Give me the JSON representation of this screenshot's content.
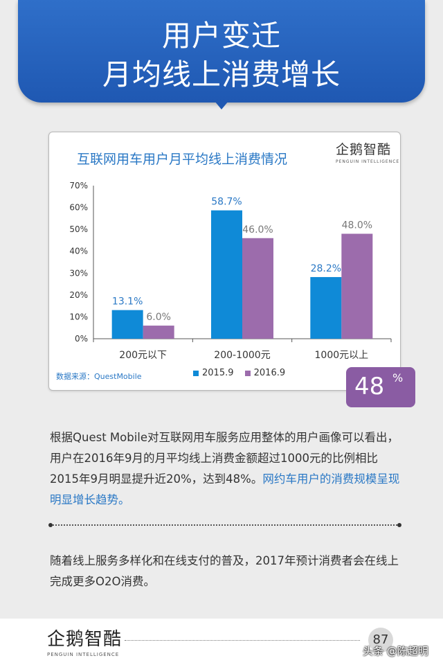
{
  "banner": {
    "line1": "用户变迁",
    "line2": "月均线上消费增长"
  },
  "chart_card": {
    "logo_name": "企鹅智酷",
    "logo_sub": "PENGUIN INTELLIGENCE",
    "source": "数据来源：QuestMobile"
  },
  "chart_data": {
    "type": "bar",
    "title": "互联网用车用户月平均线上消费情况",
    "categories": [
      "200元以下",
      "200-1000元",
      "1000元以上"
    ],
    "series": [
      {
        "name": "2015.9",
        "values": [
          13.1,
          58.7,
          28.2
        ],
        "labels": [
          "13.1%",
          "58.7%",
          "28.2%"
        ],
        "color": "#0f8ad7",
        "label_color": "#2a78c5"
      },
      {
        "name": "2016.9",
        "values": [
          6.0,
          46.0,
          48.0
        ],
        "labels": [
          "6.0%",
          "46.0%",
          "48.0%"
        ],
        "color": "#9c6cac",
        "label_color": "#777777"
      }
    ],
    "ylim": [
      0,
      70
    ],
    "yticks": [
      "0%",
      "10%",
      "20%",
      "30%",
      "40%",
      "50%",
      "60%",
      "70%"
    ],
    "xlabel": "",
    "ylabel": "",
    "legend": "bottom"
  },
  "badge": {
    "value": "48",
    "unit": "%"
  },
  "paragraph1": {
    "text": "根据Quest Mobile对互联网用车服务应用整体的用户画像可以看出，用户在2016年9月的月平均线上消费金额超过1000元的比例相比2015年9月明显提升近20%，达到48%。",
    "highlight": "网约车用户的消费规模呈现明显增长趋势。"
  },
  "paragraph2": {
    "text": "随着线上服务多样化和在线支付的普及，2017年预计消费者会在线上完成更多O2O消费。"
  },
  "footer": {
    "logo_name": "企鹅智酷",
    "logo_sub": "PENGUIN INTELLIGENCE",
    "page_number": "87",
    "watermark": "头条 @陈超明"
  },
  "colors": {
    "banner": "#1f58b2",
    "accent_blue": "#2a78c5",
    "badge": "#8a5ca3"
  }
}
